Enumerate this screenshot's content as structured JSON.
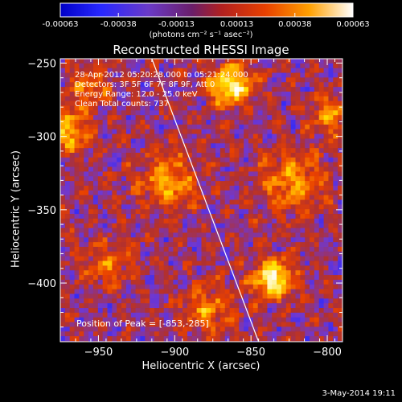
{
  "colorbar": {
    "units": "(photons cm⁻² s⁻¹ asec⁻²)",
    "ticks": [
      "-0.00063",
      "-0.00038",
      "-0.00013",
      "0.00013",
      "0.00038",
      "0.00063"
    ],
    "range": [
      -0.00063,
      0.00063
    ]
  },
  "header": {
    "title": "Reconstructed RHESSI Image"
  },
  "info": {
    "line1": "28-Apr-2012 05:20:28.000 to 05:21:24.000",
    "line2": "Detectors: 3F 5F 6F 7F 8F 9F, Att 0",
    "line3": "Energy Range: 12.0 - 25.0 keV",
    "line4": "Clean     Total counts: 737",
    "peak": "Position of Peak = [-853,-285]"
  },
  "footer": {
    "date": "3-May-2014 19:11"
  },
  "chart_data": {
    "type": "heatmap",
    "title": "Reconstructed RHESSI Image",
    "xlabel": "Heliocentric X (arcsec)",
    "ylabel": "Heliocentric Y (arcsec)",
    "xlim": [
      -975,
      -790
    ],
    "ylim": [
      -440,
      -247
    ],
    "xticks": [
      -950,
      -900,
      -850,
      -800
    ],
    "yticks": [
      -400,
      -350,
      -300,
      -250
    ],
    "xtick_labels": [
      "−950",
      "−900",
      "−850",
      "−800"
    ],
    "ytick_labels": [
      "−400",
      "−350",
      "−300",
      "−250"
    ],
    "limb_line": {
      "x": [
        -915,
        -845
      ],
      "y": [
        -247,
        -440
      ]
    },
    "peak": {
      "x": -853,
      "y": -285
    },
    "colormap": [
      "#0000c8",
      "#2828ff",
      "#7038d0",
      "#b03030",
      "#e84000",
      "#ff9000",
      "#ffe000",
      "#ffffff"
    ]
  }
}
